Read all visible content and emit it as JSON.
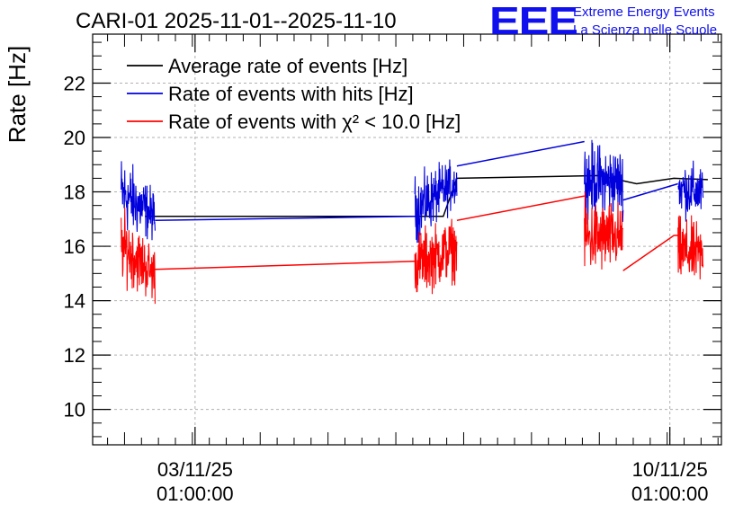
{
  "title": "CARI-01 2025-11-01--2025-11-10",
  "logo": {
    "mark": "EEE",
    "line1": "Extreme Energy Events",
    "line2": "La Scienza nelle Scuole",
    "color": "#1010ee"
  },
  "chart_data": {
    "type": "line",
    "title": "CARI-01 2025-11-01--2025-11-10",
    "xlabel": "",
    "ylabel": "Rate [Hz]",
    "ylim": [
      8.7,
      23.8
    ],
    "yticks": [
      10,
      12,
      14,
      16,
      18,
      20,
      22
    ],
    "ytick_labels": [
      "10",
      "12",
      "14",
      "16",
      "18",
      "20",
      "22"
    ],
    "x_unit": "days since 01/11/25 00:00",
    "xlim": [
      1.53,
      10.8
    ],
    "xticks": [
      {
        "x": 3.04,
        "date": "03/11/25",
        "time": "01:00:00"
      },
      {
        "x": 10.04,
        "date": "10/11/25",
        "time": "01:00:00"
      }
    ],
    "grid": true,
    "legend_position": "top-left",
    "series": [
      {
        "name": "Average rate of events [Hz]",
        "color": "#000000",
        "noisy": false,
        "segments": [
          [
            [
              2.3,
              17.1
            ],
            [
              6.7,
              17.1
            ],
            [
              6.9,
              18.5
            ],
            [
              9.0,
              18.6
            ],
            [
              9.55,
              18.3
            ],
            [
              10.1,
              18.5
            ],
            [
              10.6,
              18.45
            ]
          ]
        ]
      },
      {
        "name": "Rate of events with hits [Hz]",
        "color": "#0000dd",
        "noisy": true,
        "bursts": [
          {
            "x0": 1.95,
            "x1": 2.45,
            "lo_start": 16.2,
            "hi_start": 19.7,
            "lo_end": 16.0,
            "hi_end": 18.2
          },
          {
            "x0": 6.28,
            "x1": 6.9,
            "lo_start": 15.9,
            "hi_start": 18.8,
            "lo_end": 17.3,
            "hi_end": 19.4
          },
          {
            "x0": 8.78,
            "x1": 9.35,
            "lo_start": 16.8,
            "hi_start": 20.1,
            "lo_end": 16.9,
            "hi_end": 19.8
          },
          {
            "x0": 10.16,
            "x1": 10.53,
            "lo_start": 16.9,
            "hi_start": 19.4,
            "lo_end": 16.8,
            "hi_end": 19.1
          }
        ],
        "segments": [
          [
            [
              2.45,
              16.95
            ],
            [
              6.28,
              17.1
            ]
          ],
          [
            [
              6.9,
              18.95
            ],
            [
              8.78,
              19.85
            ]
          ],
          [
            [
              9.35,
              17.7
            ],
            [
              10.16,
              18.3
            ]
          ]
        ]
      },
      {
        "name": "Rate of events with χ² < 10.0 [Hz]",
        "color": "#ff0000",
        "noisy": true,
        "bursts": [
          {
            "x0": 1.95,
            "x1": 2.45,
            "lo_start": 14.5,
            "hi_start": 17.6,
            "lo_end": 13.7,
            "hi_end": 16.2
          },
          {
            "x0": 6.28,
            "x1": 6.9,
            "lo_start": 13.9,
            "hi_start": 16.8,
            "lo_end": 14.6,
            "hi_end": 17.3
          },
          {
            "x0": 8.78,
            "x1": 9.35,
            "lo_start": 14.6,
            "hi_start": 18.0,
            "lo_end": 14.9,
            "hi_end": 17.8
          },
          {
            "x0": 10.16,
            "x1": 10.53,
            "lo_start": 14.4,
            "hi_start": 17.3,
            "lo_end": 14.3,
            "hi_end": 17.0
          }
        ],
        "segments": [
          [
            [
              2.45,
              15.15
            ],
            [
              6.28,
              15.45
            ]
          ],
          [
            [
              6.9,
              16.95
            ],
            [
              8.78,
              17.85
            ]
          ],
          [
            [
              9.35,
              15.1
            ],
            [
              10.1,
              16.4
            ],
            [
              10.16,
              16.4
            ]
          ]
        ]
      }
    ]
  }
}
